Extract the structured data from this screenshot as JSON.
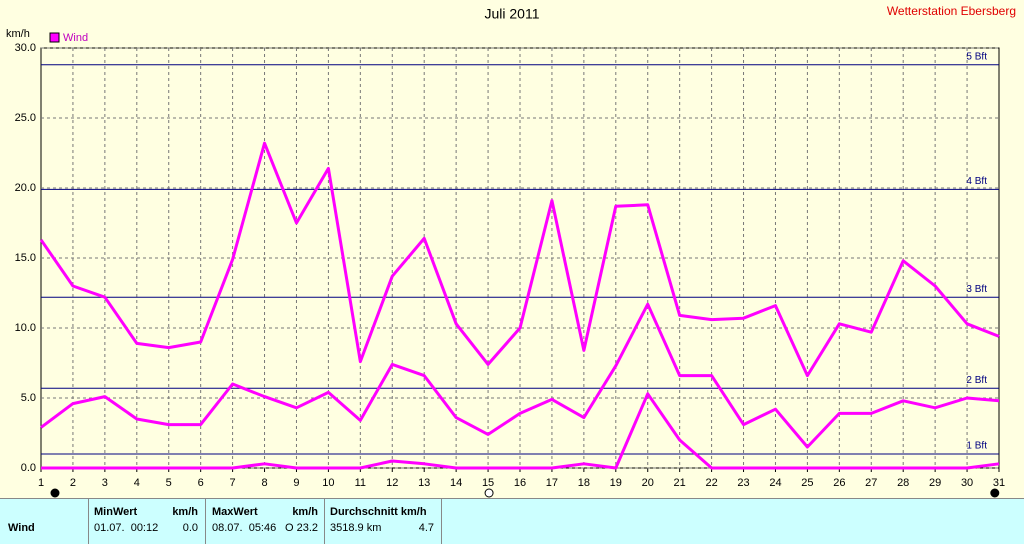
{
  "chart_data": {
    "type": "line",
    "title": "Juli 2011",
    "station": "Wetterstation Ebersberg",
    "y_label": "km/h",
    "categories": [
      "1",
      "2",
      "3",
      "4",
      "5",
      "6",
      "7",
      "8",
      "9",
      "10",
      "11",
      "12",
      "13",
      "14",
      "15",
      "16",
      "17",
      "18",
      "19",
      "20",
      "21",
      "22",
      "23",
      "24",
      "25",
      "26",
      "27",
      "28",
      "29",
      "30",
      "31"
    ],
    "series": [
      {
        "name": "Wind",
        "color": "#ff00ff",
        "values": [
          16.3,
          13.0,
          12.2,
          8.9,
          8.6,
          9.0,
          14.9,
          23.2,
          17.5,
          21.4,
          7.6,
          13.7,
          16.4,
          10.3,
          7.4,
          10.0,
          19.1,
          8.4,
          18.7,
          18.8,
          10.9,
          10.6,
          10.7,
          11.6,
          6.6,
          10.3,
          9.7,
          14.8,
          13.0,
          10.3,
          9.4
        ]
      },
      {
        "color": "#ff00ff",
        "values": [
          2.9,
          4.6,
          5.1,
          3.5,
          3.1,
          3.1,
          6.0,
          5.1,
          4.3,
          5.4,
          3.4,
          7.4,
          6.6,
          3.6,
          2.4,
          3.9,
          4.9,
          3.6,
          7.3,
          11.7,
          6.6,
          6.6,
          3.1,
          4.2,
          1.5,
          3.9,
          3.9,
          4.8,
          4.3,
          5.0,
          4.8
        ]
      },
      {
        "color": "#ff00ff",
        "values": [
          0,
          0,
          0,
          0,
          0,
          0,
          0,
          0.3,
          0,
          0,
          0,
          0.5,
          0.3,
          0,
          0,
          0,
          0,
          0.3,
          0,
          5.3,
          2.0,
          0,
          0,
          0,
          0,
          0,
          0,
          0,
          0,
          0,
          0.3
        ]
      }
    ],
    "ylim": [
      0,
      30
    ],
    "yticks": [
      {
        "value": 0,
        "label": "0.0"
      },
      {
        "value": 5,
        "label": "5.0"
      },
      {
        "value": 10,
        "label": "10.0"
      },
      {
        "value": 15,
        "label": "15.0"
      },
      {
        "value": 20,
        "label": "20.0"
      },
      {
        "value": 25,
        "label": "25.0"
      },
      {
        "value": 30,
        "label": "30.0"
      }
    ],
    "bft_lines": [
      {
        "value": 1.0,
        "label": "1 Bft"
      },
      {
        "value": 5.7,
        "label": "2 Bft"
      },
      {
        "value": 12.2,
        "label": "3 Bft"
      },
      {
        "value": 19.9,
        "label": "4 Bft"
      },
      {
        "value": 28.8,
        "label": "5 Bft"
      }
    ],
    "grid": true
  },
  "table": {
    "header": [
      "MinWert",
      "km/h",
      "MaxWert",
      "km/h",
      "Durchschnitt km/h"
    ],
    "rows": [
      [
        "Wind",
        "01.07.  00:12",
        "0.0",
        "08.07.  05:46",
        "O 23.2",
        "3518.9 km",
        "4.7"
      ]
    ]
  }
}
